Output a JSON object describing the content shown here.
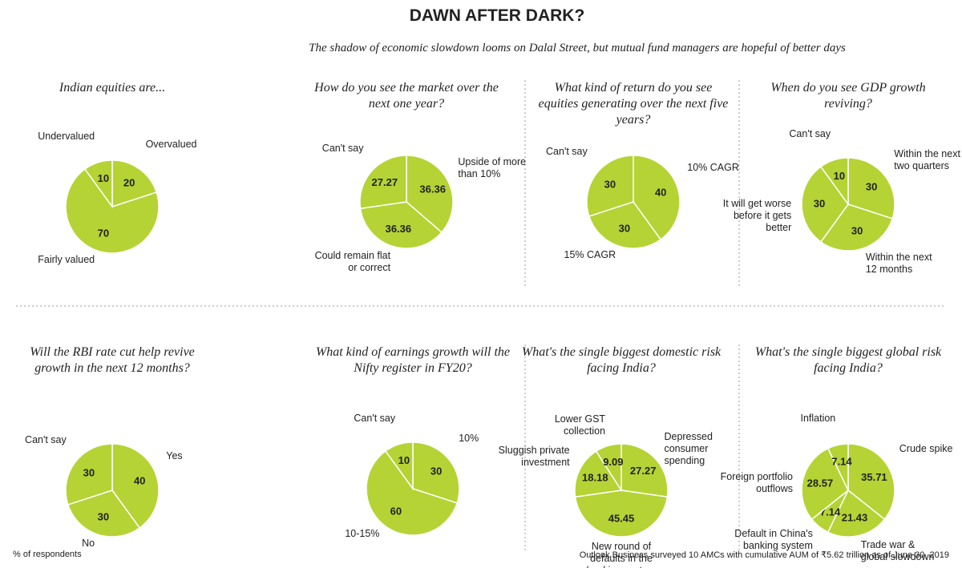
{
  "header": {
    "title": "DAWN AFTER DARK?",
    "subtitle": "The shadow of economic slowdown looms on Dalal Street, but mutual fund managers are hopeful of better days"
  },
  "footer": {
    "left": "% of respondents",
    "right": "Outlook Business surveyed 10 AMCs with cumulative AUM of ₹5.62 trillion as of June 30, 2019"
  },
  "chart_data": [
    {
      "type": "pie",
      "title": "Indian equities are...",
      "color": "#b5d334",
      "categories": [
        "Overvalued",
        "Fairly valued",
        "Undervalued"
      ],
      "values": [
        20,
        70,
        10
      ]
    },
    {
      "type": "pie",
      "title": "How do you see the market over the next one year?",
      "color": "#b5d334",
      "categories": [
        "Upside of more than 10%",
        "Could remain flat or correct",
        "Can't say"
      ],
      "values": [
        36.36,
        36.36,
        27.27
      ]
    },
    {
      "type": "pie",
      "title": "What kind of return do you see equities generating over the next five years?",
      "color": "#b5d334",
      "categories": [
        "10% CAGR",
        "15% CAGR",
        "Can't say"
      ],
      "values": [
        40,
        30,
        30
      ]
    },
    {
      "type": "pie",
      "title": "When do you see GDP growth reviving?",
      "color": "#b5d334",
      "categories": [
        "Within the next two quarters",
        "Within the next 12 months",
        "It will get worse before it gets better",
        "Can't say"
      ],
      "values": [
        30,
        30,
        30,
        10
      ]
    },
    {
      "type": "pie",
      "title": "Will the RBI rate cut help revive growth in the next 12 months?",
      "color": "#b5d334",
      "categories": [
        "Yes",
        "No",
        "Can't say"
      ],
      "values": [
        40,
        30,
        30
      ]
    },
    {
      "type": "pie",
      "title": "What kind of earnings growth will the Nifty register in FY20?",
      "color": "#b5d334",
      "categories": [
        "10%",
        "10-15%",
        "Can't say"
      ],
      "values": [
        30,
        60,
        10
      ]
    },
    {
      "type": "pie",
      "title": "What's the single biggest domestic risk facing India?",
      "color": "#b5d334",
      "categories": [
        "Depressed consumer spending",
        "New round of defaults in the banking system",
        "Sluggish private investment",
        "Lower GST collection"
      ],
      "values": [
        27.27,
        45.45,
        18.18,
        9.09
      ]
    },
    {
      "type": "pie",
      "title": "What's the single biggest global risk facing India?",
      "color": "#b5d334",
      "categories": [
        "Crude spike",
        "Trade war & global slowdown",
        "Default in China's banking system",
        "Foreign portfolio outflows",
        "Inflation"
      ],
      "values": [
        35.71,
        21.43,
        7.14,
        28.57,
        7.14
      ]
    }
  ]
}
